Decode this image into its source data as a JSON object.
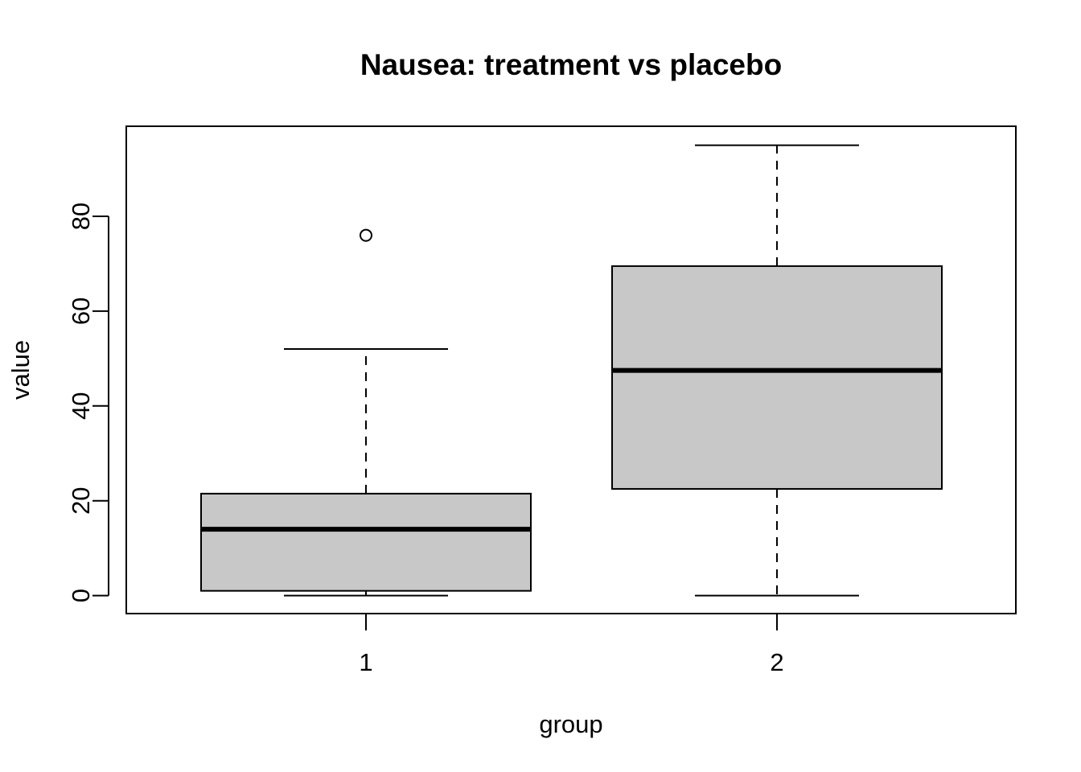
{
  "chart_data": {
    "type": "box",
    "title": "Nausea: treatment vs placebo",
    "xlabel": "group",
    "ylabel": "value",
    "categories": [
      "1",
      "2"
    ],
    "yticks": [
      "0",
      "20",
      "40",
      "60",
      "80"
    ],
    "ylim": [
      -3.8,
      99
    ],
    "boxes": [
      {
        "category": "1",
        "whisker_low": 0,
        "q1": 1,
        "median": 14,
        "q3": 21.5,
        "whisker_high": 52,
        "outliers": [
          76
        ]
      },
      {
        "category": "2",
        "whisker_low": 0,
        "q1": 22.5,
        "median": 47.5,
        "q3": 69.5,
        "whisker_high": 95,
        "outliers": []
      }
    ],
    "colors": {
      "box_fill": "#c8c8c8",
      "stroke": "#000000"
    },
    "grid": false,
    "legend": "none"
  }
}
